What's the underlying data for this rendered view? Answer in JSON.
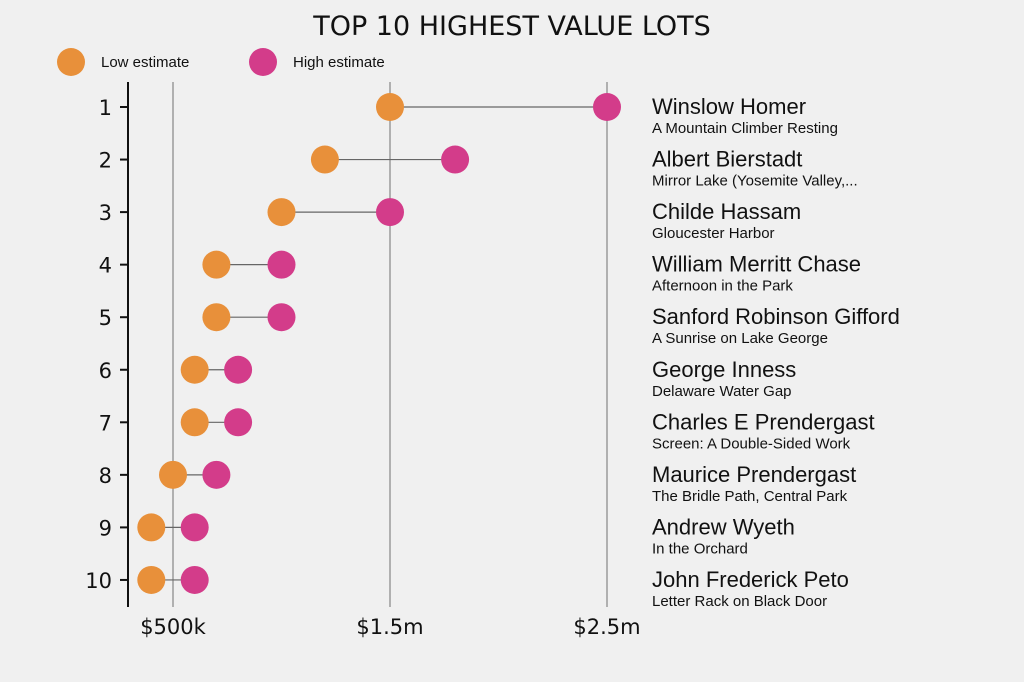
{
  "chart_data": {
    "type": "dumbbell",
    "title": "TOP 10 HIGHEST VALUE LOTS",
    "legend": [
      {
        "label": "Low estimate",
        "color": "#E8903A"
      },
      {
        "label": "High estimate",
        "color": "#D33C8A"
      }
    ],
    "legend_position": "top-left",
    "x_unit": "millions USD",
    "xlim": [
      0.3,
      2.5
    ],
    "x_ticks": [
      {
        "value": 0.5,
        "label": "$500k"
      },
      {
        "value": 1.5,
        "label": "$1.5m"
      },
      {
        "value": 2.5,
        "label": "$2.5m"
      }
    ],
    "grid": true,
    "rows": [
      {
        "rank": "1",
        "artist": "Winslow Homer",
        "work": "A Mountain Climber Resting",
        "low": 1.5,
        "high": 2.5
      },
      {
        "rank": "2",
        "artist": "Albert Bierstadt",
        "work": "Mirror Lake (Yosemite Valley,...",
        "low": 1.2,
        "high": 1.8
      },
      {
        "rank": "3",
        "artist": "Childe Hassam",
        "work": "Gloucester Harbor",
        "low": 1.0,
        "high": 1.5
      },
      {
        "rank": "4",
        "artist": "William Merritt Chase",
        "work": "Afternoon in the Park",
        "low": 0.7,
        "high": 1.0
      },
      {
        "rank": "5",
        "artist": "Sanford Robinson Gifford",
        "work": "A Sunrise on Lake George",
        "low": 0.7,
        "high": 1.0
      },
      {
        "rank": "6",
        "artist": "George Inness",
        "work": "Delaware Water Gap",
        "low": 0.6,
        "high": 0.8
      },
      {
        "rank": "7",
        "artist": "Charles E Prendergast",
        "work": "Screen: A Double-Sided Work",
        "low": 0.6,
        "high": 0.8
      },
      {
        "rank": "8",
        "artist": "Maurice Prendergast",
        "work": "The Bridle Path, Central Park",
        "low": 0.5,
        "high": 0.7
      },
      {
        "rank": "9",
        "artist": "Andrew Wyeth",
        "work": "In the Orchard",
        "low": 0.4,
        "high": 0.6
      },
      {
        "rank": "10",
        "artist": "John Frederick Peto",
        "work": "Letter Rack on Black Door",
        "low": 0.4,
        "high": 0.6
      }
    ]
  }
}
